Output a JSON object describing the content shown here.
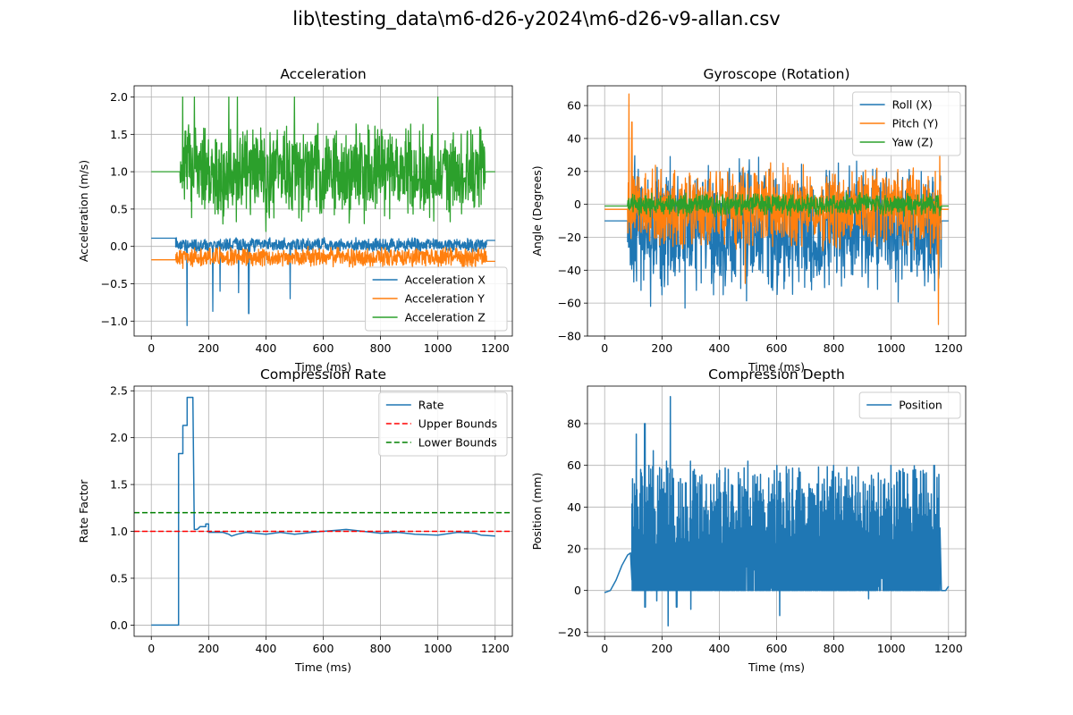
{
  "figure": {
    "title": "lib\\testing_data\\m6-d26-y2024\\m6-d26-v9-allan.csv"
  },
  "colors": {
    "blue": "#1f77b4",
    "orange": "#ff7f0e",
    "green": "#2ca02c",
    "red": "#ff0000",
    "dashgreen": "#008000",
    "grid": "#b0b0b0"
  },
  "chart_data": [
    {
      "id": "acc",
      "type": "line",
      "title": "Acceleration",
      "xlabel": "Time (ms)",
      "ylabel": "Acceleration (m/s)",
      "xlim": [
        -60,
        1260
      ],
      "ylim": [
        -1.2,
        2.15
      ],
      "xticks": [
        0,
        200,
        400,
        600,
        800,
        1000,
        1200
      ],
      "yticks": [
        -1.0,
        -0.5,
        0.0,
        0.5,
        1.0,
        1.5,
        2.0
      ],
      "ytick_labels": [
        "−1.0",
        "−0.5",
        "0.0",
        "0.5",
        "1.0",
        "1.5",
        "2.0"
      ],
      "grid": true,
      "legend_loc": "lower right",
      "series": [
        {
          "name": "Acceleration X",
          "color": "blue",
          "flat": [
            [
              0,
              85,
              0.11
            ]
          ],
          "active": [
            85,
            1170,
            0.02,
            0.08
          ],
          "spikes": [
            [
              125,
              -1.06
            ],
            [
              215,
              -0.87
            ],
            [
              305,
              -0.62
            ],
            [
              340,
              -0.9
            ],
            [
              485,
              -0.7
            ],
            [
              240,
              -0.6
            ]
          ],
          "tail": [
            1170,
            1200,
            0.08
          ]
        },
        {
          "name": "Acceleration Y",
          "color": "orange",
          "flat": [
            [
              0,
              85,
              -0.18
            ]
          ],
          "active": [
            85,
            1170,
            -0.15,
            0.12
          ],
          "spikes": [],
          "tail": [
            1170,
            1200,
            -0.2
          ]
        },
        {
          "name": "Acceleration Z",
          "color": "green",
          "flat": [
            [
              0,
              100,
              1.0
            ]
          ],
          "active": [
            100,
            1165,
            1.0,
            0.55
          ],
          "spikes": [
            [
              110,
              2.0
            ],
            [
              150,
              2.0
            ],
            [
              270,
              2.0
            ],
            [
              300,
              2.0
            ],
            [
              500,
              2.0
            ],
            [
              1000,
              2.0
            ],
            [
              400,
              0.2
            ],
            [
              250,
              0.3
            ]
          ],
          "tail": [
            1165,
            1200,
            1.0
          ],
          "clip": [
            0.2,
            2.0
          ]
        }
      ]
    },
    {
      "id": "gyro",
      "type": "line",
      "title": "Gyroscope (Rotation)",
      "xlabel": "Time (ms)",
      "ylabel": "Angle (Degrees)",
      "xlim": [
        -60,
        1260
      ],
      "ylim": [
        -80,
        72
      ],
      "xticks": [
        0,
        200,
        400,
        600,
        800,
        1000,
        1200
      ],
      "yticks": [
        -80,
        -60,
        -40,
        -20,
        0,
        20,
        40,
        60
      ],
      "ytick_labels": [
        "−80",
        "−60",
        "−40",
        "−20",
        "0",
        "20",
        "40",
        "60"
      ],
      "grid": true,
      "legend_loc": "upper right",
      "series": [
        {
          "name": "Roll (X)",
          "color": "blue",
          "flat": [
            [
              0,
              80,
              -10
            ]
          ],
          "active": [
            80,
            1175,
            -15,
            35
          ],
          "spikes": [
            [
              160,
              -62
            ],
            [
              200,
              -55
            ],
            [
              280,
              -63
            ],
            [
              380,
              -55
            ]
          ],
          "tail": [
            1175,
            1200,
            -10
          ]
        },
        {
          "name": "Pitch (Y)",
          "color": "orange",
          "flat": [
            [
              0,
              80,
              -3
            ]
          ],
          "active": [
            80,
            1175,
            -3,
            22
          ],
          "spikes": [
            [
              85,
              67
            ],
            [
              95,
              50
            ],
            [
              1165,
              -73
            ],
            [
              1170,
              30
            ],
            [
              490,
              -48
            ]
          ],
          "tail": [
            1175,
            1200,
            -3
          ]
        },
        {
          "name": "Yaw (Z)",
          "color": "green",
          "flat": [
            [
              0,
              80,
              -1
            ]
          ],
          "active": [
            80,
            1175,
            0,
            6
          ],
          "spikes": [],
          "tail": [
            1175,
            1200,
            -1
          ]
        }
      ]
    },
    {
      "id": "rate",
      "type": "line",
      "title": "Compression Rate",
      "xlabel": "Time (ms)",
      "ylabel": "Rate Factor",
      "xlim": [
        -60,
        1260
      ],
      "ylim": [
        -0.12,
        2.55
      ],
      "xticks": [
        0,
        200,
        400,
        600,
        800,
        1000,
        1200
      ],
      "yticks": [
        0.0,
        0.5,
        1.0,
        1.5,
        2.0,
        2.5
      ],
      "ytick_labels": [
        "0.0",
        "0.5",
        "1.0",
        "1.5",
        "2.0",
        "2.5"
      ],
      "grid": true,
      "legend_loc": "upper right",
      "series": [
        {
          "name": "Rate",
          "color": "blue",
          "style": "step",
          "points": [
            [
              0,
              0
            ],
            [
              95,
              0
            ],
            [
              95,
              1.83
            ],
            [
              110,
              1.83
            ],
            [
              110,
              2.13
            ],
            [
              125,
              2.13
            ],
            [
              125,
              2.43
            ],
            [
              145,
              2.43
            ],
            [
              150,
              1.02
            ],
            [
              160,
              1.02
            ],
            [
              170,
              1.05
            ],
            [
              190,
              1.05
            ],
            [
              190,
              1.08
            ],
            [
              200,
              1.08
            ],
            [
              200,
              0.99
            ],
            [
              250,
              0.99
            ],
            [
              270,
              0.97
            ],
            [
              280,
              0.95
            ],
            [
              300,
              0.97
            ],
            [
              330,
              0.99
            ],
            [
              400,
              0.97
            ],
            [
              450,
              0.99
            ],
            [
              500,
              0.97
            ],
            [
              560,
              0.99
            ],
            [
              600,
              1.0
            ],
            [
              680,
              1.02
            ],
            [
              740,
              1.0
            ],
            [
              800,
              0.98
            ],
            [
              860,
              0.99
            ],
            [
              920,
              0.97
            ],
            [
              1000,
              0.96
            ],
            [
              1070,
              0.99
            ],
            [
              1130,
              0.98
            ],
            [
              1150,
              0.96
            ],
            [
              1200,
              0.95
            ]
          ]
        },
        {
          "name": "Upper Bounds",
          "color": "red",
          "style": "dashed",
          "hline": 1.0
        },
        {
          "name": "Lower Bounds",
          "color": "dashgreen",
          "style": "dashed",
          "hline": 1.2
        }
      ]
    },
    {
      "id": "depth",
      "type": "line",
      "title": "Compression Depth",
      "xlabel": "Time (ms)",
      "ylabel": "Position (mm)",
      "xlim": [
        -60,
        1260
      ],
      "ylim": [
        -22,
        98
      ],
      "xticks": [
        0,
        200,
        400,
        600,
        800,
        1000,
        1200
      ],
      "yticks": [
        -20,
        0,
        20,
        40,
        60,
        80
      ],
      "ytick_labels": [
        "−20",
        "0",
        "20",
        "40",
        "60",
        "80"
      ],
      "grid": true,
      "legend_loc": "upper right",
      "series": [
        {
          "name": "Position",
          "color": "blue",
          "style": "saw",
          "lead": [
            [
              0,
              -1
            ],
            [
              20,
              0
            ],
            [
              40,
              5
            ],
            [
              60,
              12
            ],
            [
              80,
              17
            ],
            [
              90,
              18
            ],
            [
              95,
              5
            ]
          ],
          "active": [
            95,
            1170
          ],
          "peaks": [
            [
              110,
              75
            ],
            [
              125,
              58
            ],
            [
              140,
              80
            ],
            [
              170,
              67
            ],
            [
              215,
              62
            ],
            [
              230,
              93
            ],
            [
              300,
              62
            ],
            [
              500,
              62
            ],
            [
              600,
              60
            ],
            [
              800,
              60
            ],
            [
              1000,
              60
            ],
            [
              1150,
              60
            ]
          ],
          "dips": [
            [
              140,
              -8
            ],
            [
              180,
              -5
            ],
            [
              220,
              -17
            ],
            [
              250,
              -8
            ],
            [
              300,
              -9
            ],
            [
              610,
              -12
            ],
            [
              920,
              -4
            ]
          ],
          "tail": [
            [
              1170,
              30
            ],
            [
              1175,
              0
            ],
            [
              1190,
              0
            ],
            [
              1200,
              2
            ]
          ]
        }
      ]
    }
  ]
}
